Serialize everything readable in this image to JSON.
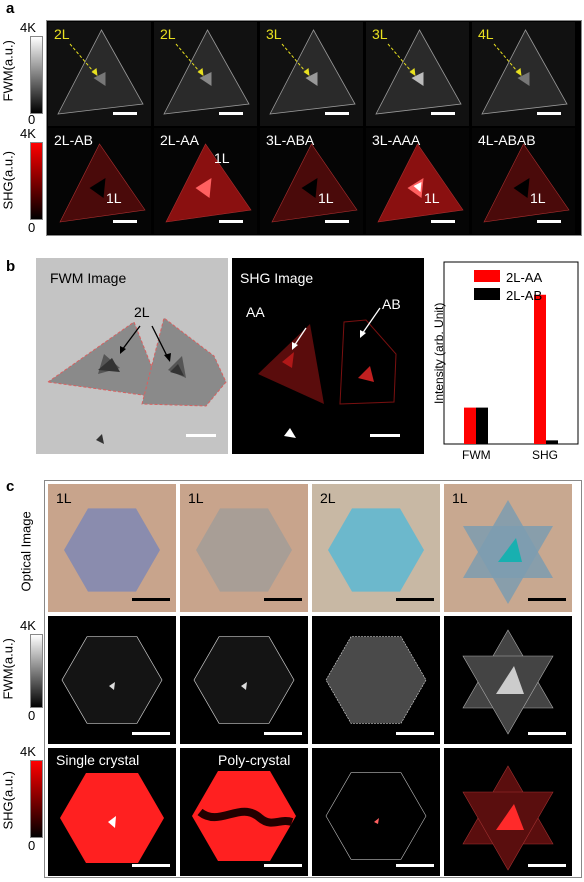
{
  "panel_labels": {
    "a": "a",
    "b": "b",
    "c": "c"
  },
  "colorbar": {
    "fwm_label": "FWM(a.u.)",
    "shg_label": "SHG(a.u.)",
    "max": "4K",
    "min": "0"
  },
  "panel_a": {
    "fwm_labels": [
      "2L",
      "2L",
      "3L",
      "3L",
      "4L"
    ],
    "shg_labels": [
      "2L-AB",
      "2L-AA",
      "3L-ABA",
      "3L-AAA",
      "4L-ABAB"
    ],
    "one_layer": "1L",
    "highlight_color": "#e8e020",
    "shg_color": "#b01818"
  },
  "panel_b": {
    "fwm_title": "FWM Image",
    "fwm_arrow_label": "2L",
    "shg_title": "SHG Image",
    "shg_aa": "AA",
    "shg_ab": "AB",
    "chart_data": {
      "type": "bar",
      "categories": [
        "FWM",
        "SHG"
      ],
      "series": [
        {
          "name": "2L-AA",
          "color": "#ff0000",
          "values": [
            1.0,
            4.1
          ]
        },
        {
          "name": "2L-AB",
          "color": "#000000",
          "values": [
            1.0,
            0.1
          ]
        }
      ],
      "ylabel": "Intensity  (arb. Unit)",
      "ylim": [
        0,
        5
      ],
      "legend": "top-right"
    }
  },
  "panel_c": {
    "optical_label": "Optical Image",
    "optical_layers": [
      "1L",
      "1L",
      "2L",
      "1L"
    ],
    "shg_titles": [
      "Single crystal",
      "Poly-crystal"
    ]
  }
}
